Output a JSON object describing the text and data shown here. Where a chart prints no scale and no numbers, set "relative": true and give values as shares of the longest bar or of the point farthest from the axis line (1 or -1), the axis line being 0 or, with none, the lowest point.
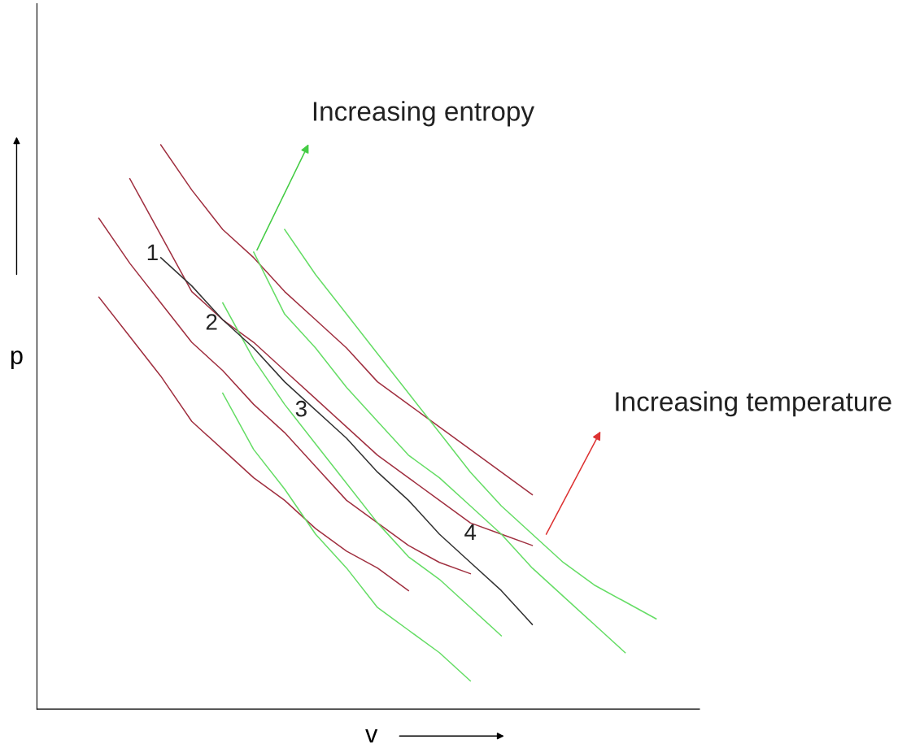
{
  "chart_data": {
    "type": "line",
    "relative": true,
    "xlabel": "v",
    "ylabel": "p",
    "marker": "none",
    "line_style": "solid",
    "categories": [
      null,
      null,
      null,
      null,
      null,
      null,
      null,
      null,
      null,
      null,
      null,
      null,
      null,
      null,
      null,
      null,
      null,
      null,
      null
    ],
    "series": [
      {
        "color": "#a03040",
        "values": [
          null,
          null,
          1.0,
          0.92,
          0.85,
          0.8,
          0.74,
          0.69,
          0.64,
          0.58,
          0.54,
          0.5,
          0.46,
          0.42,
          0.38,
          null,
          null,
          null,
          null
        ]
      },
      {
        "color": "#a03040",
        "values": [
          null,
          0.94,
          0.84,
          0.74,
          0.69,
          0.65,
          0.6,
          0.55,
          0.5,
          0.45,
          0.41,
          0.37,
          0.33,
          0.31,
          0.29,
          null,
          null,
          null,
          null
        ]
      },
      {
        "color": "#a03040",
        "values": [
          0.87,
          0.79,
          0.72,
          0.65,
          0.6,
          0.54,
          0.49,
          0.43,
          0.37,
          0.33,
          0.29,
          0.26,
          0.24,
          null,
          null,
          null,
          null,
          null,
          null
        ]
      },
      {
        "color": "#a03040",
        "values": [
          0.73,
          0.66,
          0.59,
          0.51,
          0.46,
          0.41,
          0.37,
          0.32,
          0.28,
          0.25,
          0.21,
          null,
          null,
          null,
          null,
          null,
          null,
          null,
          null
        ]
      },
      {
        "color": "#66dd66",
        "values": [
          null,
          null,
          null,
          null,
          null,
          null,
          0.85,
          0.77,
          0.7,
          0.63,
          0.56,
          0.49,
          0.42,
          0.36,
          0.31,
          0.26,
          0.22,
          0.19,
          0.16
        ]
      },
      {
        "color": "#66dd66",
        "values": [
          null,
          null,
          null,
          null,
          null,
          0.81,
          0.7,
          0.64,
          0.57,
          0.51,
          0.45,
          0.41,
          0.36,
          0.31,
          0.25,
          0.2,
          0.15,
          0.1,
          null
        ]
      },
      {
        "color": "#66dd66",
        "values": [
          null,
          null,
          null,
          null,
          0.72,
          0.62,
          0.54,
          0.47,
          0.4,
          0.33,
          0.27,
          0.23,
          0.18,
          0.13,
          null,
          null,
          null,
          null,
          null
        ]
      },
      {
        "color": "#66dd66",
        "values": [
          null,
          null,
          null,
          null,
          0.56,
          0.46,
          0.39,
          0.31,
          0.25,
          0.18,
          0.14,
          0.1,
          0.05,
          null,
          null,
          null,
          null,
          null,
          null
        ]
      },
      {
        "color": "#333333",
        "values": [
          null,
          null,
          0.8,
          0.75,
          0.69,
          0.64,
          0.58,
          0.53,
          0.48,
          0.42,
          0.37,
          0.31,
          0.26,
          0.21,
          0.15,
          null,
          null,
          null,
          null
        ]
      }
    ],
    "annotations": [
      "Increasing entropy",
      "Increasing temperature",
      "1",
      "2",
      "3",
      "4"
    ]
  }
}
